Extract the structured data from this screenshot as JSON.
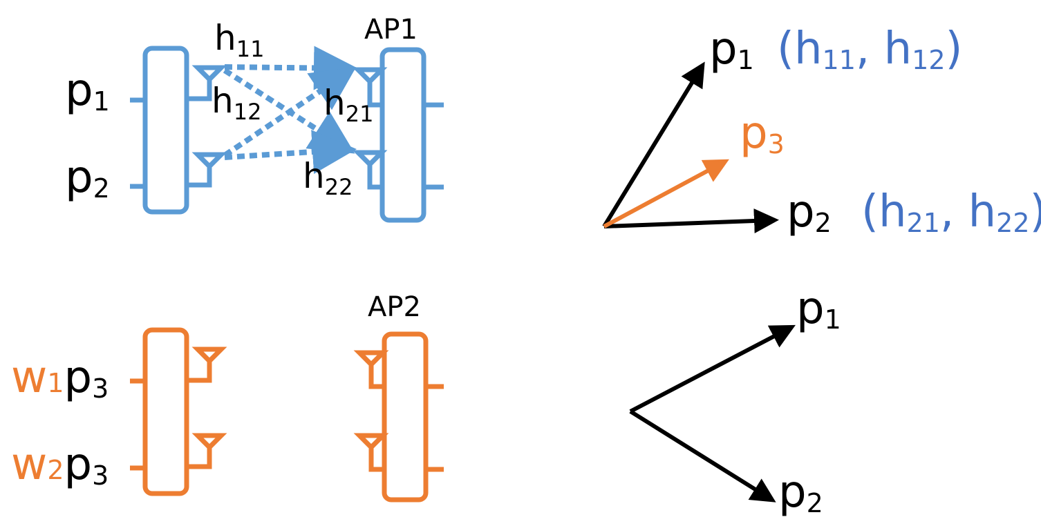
{
  "colors": {
    "blue": "#5b9bd5",
    "blue_text": "#4472c4",
    "orange": "#ed7d31",
    "black": "#000000"
  },
  "top": {
    "ap_label": "AP1",
    "input1": {
      "base": "p",
      "sub": "1"
    },
    "input2": {
      "base": "p",
      "sub": "2"
    },
    "h11": {
      "base": "h",
      "sub": "11"
    },
    "h12": {
      "base": "h",
      "sub": "12"
    },
    "h21": {
      "base": "h",
      "sub": "21"
    },
    "h22": {
      "base": "h",
      "sub": "22"
    }
  },
  "bottom": {
    "ap_label": "AP2",
    "input1": {
      "weight": "w",
      "weight_sub": "1",
      "base": "p",
      "sub": "3"
    },
    "input2": {
      "weight": "w",
      "weight_sub": "2",
      "base": "p",
      "sub": "3"
    }
  },
  "vectors_top": {
    "p1": {
      "base": "p",
      "sub": "1",
      "coord": {
        "open": "(h",
        "a": "11",
        "mid": ", h",
        "b": "12",
        "close": ")"
      }
    },
    "p2": {
      "base": "p",
      "sub": "2",
      "coord": {
        "open": "(h",
        "a": "21",
        "mid": ", h",
        "b": "22",
        "close": ")"
      }
    },
    "p3": {
      "base": "p",
      "sub": "3"
    }
  },
  "vectors_bottom": {
    "p1": {
      "base": "p",
      "sub": "1"
    },
    "p2": {
      "base": "p",
      "sub": "2"
    }
  }
}
